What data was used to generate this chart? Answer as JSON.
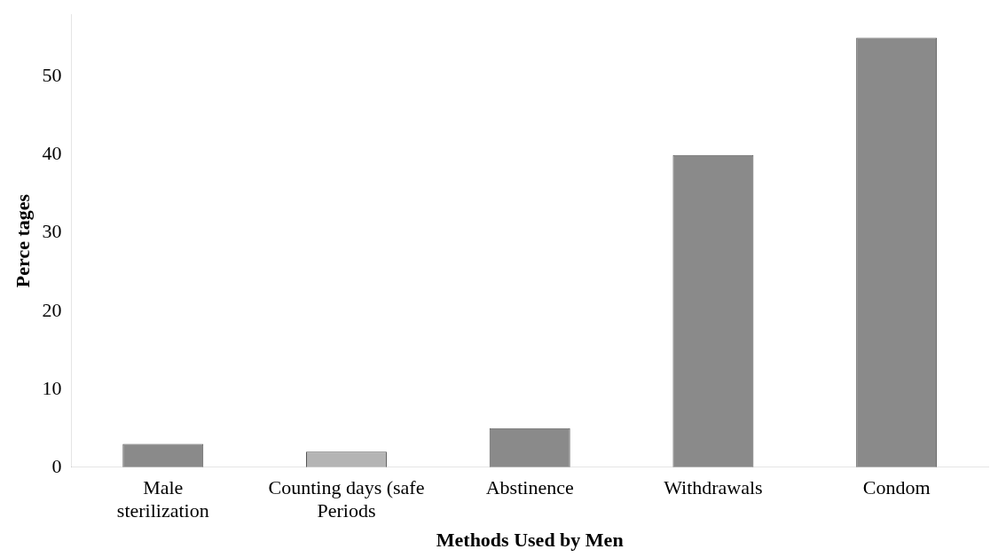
{
  "chart_data": {
    "type": "bar",
    "xlabel": "Methods Used by Men",
    "ylabel": "Perce tages",
    "categories": [
      [
        "Male",
        "sterilization"
      ],
      [
        "Counting days (safe",
        "Periods"
      ],
      "Abstinence",
      "Withdrawals",
      "Condom"
    ],
    "values": [
      3,
      2,
      5,
      40,
      55
    ],
    "colors": [
      "#8a8a8a",
      "#b4b4b4",
      "#8a8a8a",
      "#8a8a8a",
      "#8a8a8a"
    ],
    "ylim": [
      0,
      58
    ],
    "yticks": [
      0,
      10,
      20,
      30,
      40,
      50
    ],
    "grid": false,
    "legend": false
  }
}
